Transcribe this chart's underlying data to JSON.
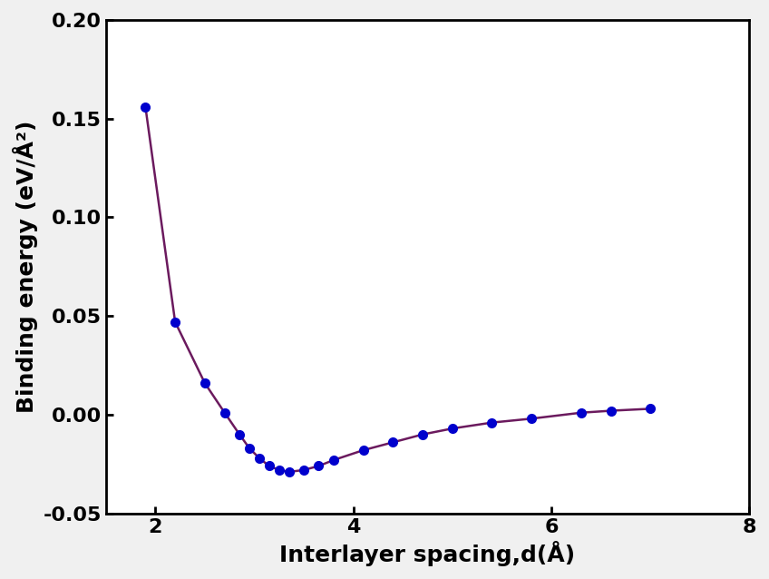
{
  "x": [
    1.9,
    2.2,
    2.5,
    2.7,
    2.85,
    2.95,
    3.05,
    3.15,
    3.25,
    3.35,
    3.5,
    3.65,
    3.8,
    4.1,
    4.4,
    4.7,
    5.0,
    5.4,
    5.8,
    6.3,
    6.6,
    7.0
  ],
  "y": [
    0.156,
    0.047,
    0.016,
    0.001,
    -0.01,
    -0.017,
    -0.022,
    -0.026,
    -0.028,
    -0.029,
    -0.028,
    -0.026,
    -0.023,
    -0.018,
    -0.014,
    -0.01,
    -0.007,
    -0.004,
    -0.002,
    0.001,
    0.002,
    0.003
  ],
  "line_color": "#6B1A5E",
  "marker_color": "#0000CD",
  "marker_size": 7,
  "line_width": 1.8,
  "xlabel": "Interlayer spacing,d(Å)",
  "ylabel": "Binding energy (eV/Å²)",
  "xlim": [
    1.5,
    8.0
  ],
  "ylim": [
    -0.05,
    0.2
  ],
  "xticks": [
    2,
    4,
    6,
    8
  ],
  "yticks": [
    -0.05,
    0.0,
    0.05,
    0.1,
    0.15,
    0.2
  ],
  "xlabel_fontsize": 18,
  "ylabel_fontsize": 18,
  "tick_fontsize": 16,
  "background_color": "#ffffff",
  "axes_linewidth": 2.0,
  "figure_facecolor": "#f0f0f0"
}
